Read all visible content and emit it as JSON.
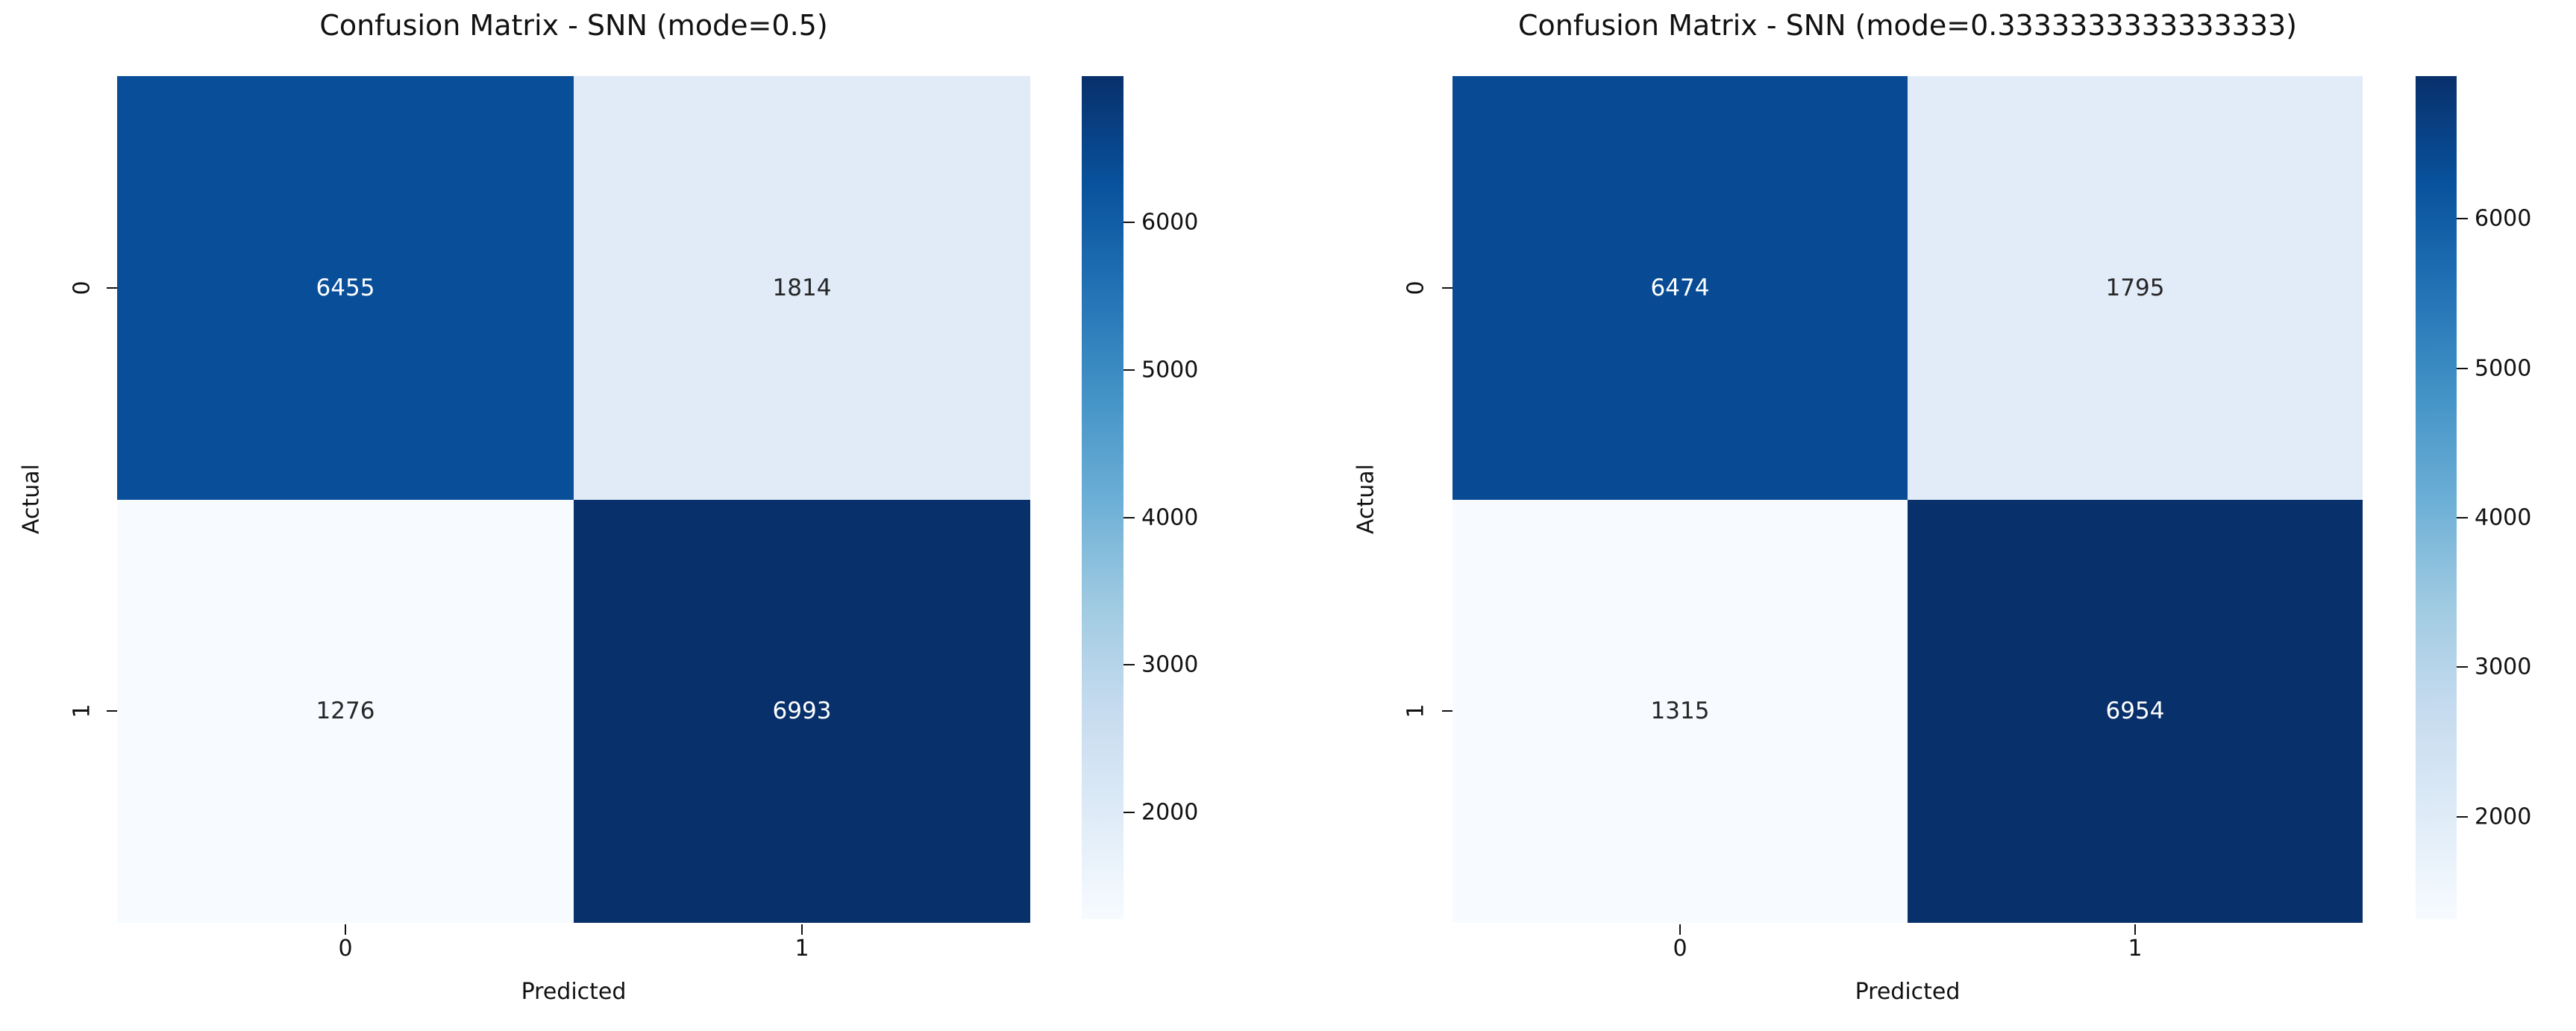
{
  "figure": {
    "background": "#ffffff"
  },
  "colormap_anchors": [
    "#08306b",
    "#08519c",
    "#2171b5",
    "#4292c6",
    "#6baed6",
    "#9ecae1",
    "#c6dbef",
    "#deebf7",
    "#f7fbff"
  ],
  "chart_data": [
    {
      "type": "heatmap",
      "title": "Confusion Matrix - SNN (mode=0.5)",
      "xlabel": "Predicted",
      "ylabel": "Actual",
      "x_ticklabels": [
        "0",
        "1"
      ],
      "y_ticklabels": [
        "0",
        "1"
      ],
      "matrix": [
        [
          6455,
          1814
        ],
        [
          1276,
          6993
        ]
      ],
      "vmin": 1276,
      "vmax": 6993,
      "colormap": "Blues",
      "colorbar_ticks": [
        6000,
        5000,
        4000,
        3000,
        2000
      ],
      "cell_colors": [
        [
          "#084e98",
          "#e0ebf7"
        ],
        [
          "#f7fbff",
          "#08306b"
        ]
      ],
      "cell_text_colors": [
        [
          "#ffffff",
          "#262626"
        ],
        [
          "#262626",
          "#ffffff"
        ]
      ]
    },
    {
      "type": "heatmap",
      "title": "Confusion Matrix - SNN (mode=0.3333333333333333)",
      "xlabel": "Predicted",
      "ylabel": "Actual",
      "x_ticklabels": [
        "0",
        "1"
      ],
      "y_ticklabels": [
        "0",
        "1"
      ],
      "matrix": [
        [
          6474,
          1795
        ],
        [
          1315,
          6954
        ]
      ],
      "vmin": 1315,
      "vmax": 6954,
      "colormap": "Blues",
      "colorbar_ticks": [
        6000,
        5000,
        4000,
        3000,
        2000
      ],
      "cell_colors": [
        [
          "#084b94",
          "#e2ecf8"
        ],
        [
          "#f7fbff",
          "#08306b"
        ]
      ],
      "cell_text_colors": [
        [
          "#ffffff",
          "#262626"
        ],
        [
          "#262626",
          "#ffffff"
        ]
      ]
    }
  ]
}
